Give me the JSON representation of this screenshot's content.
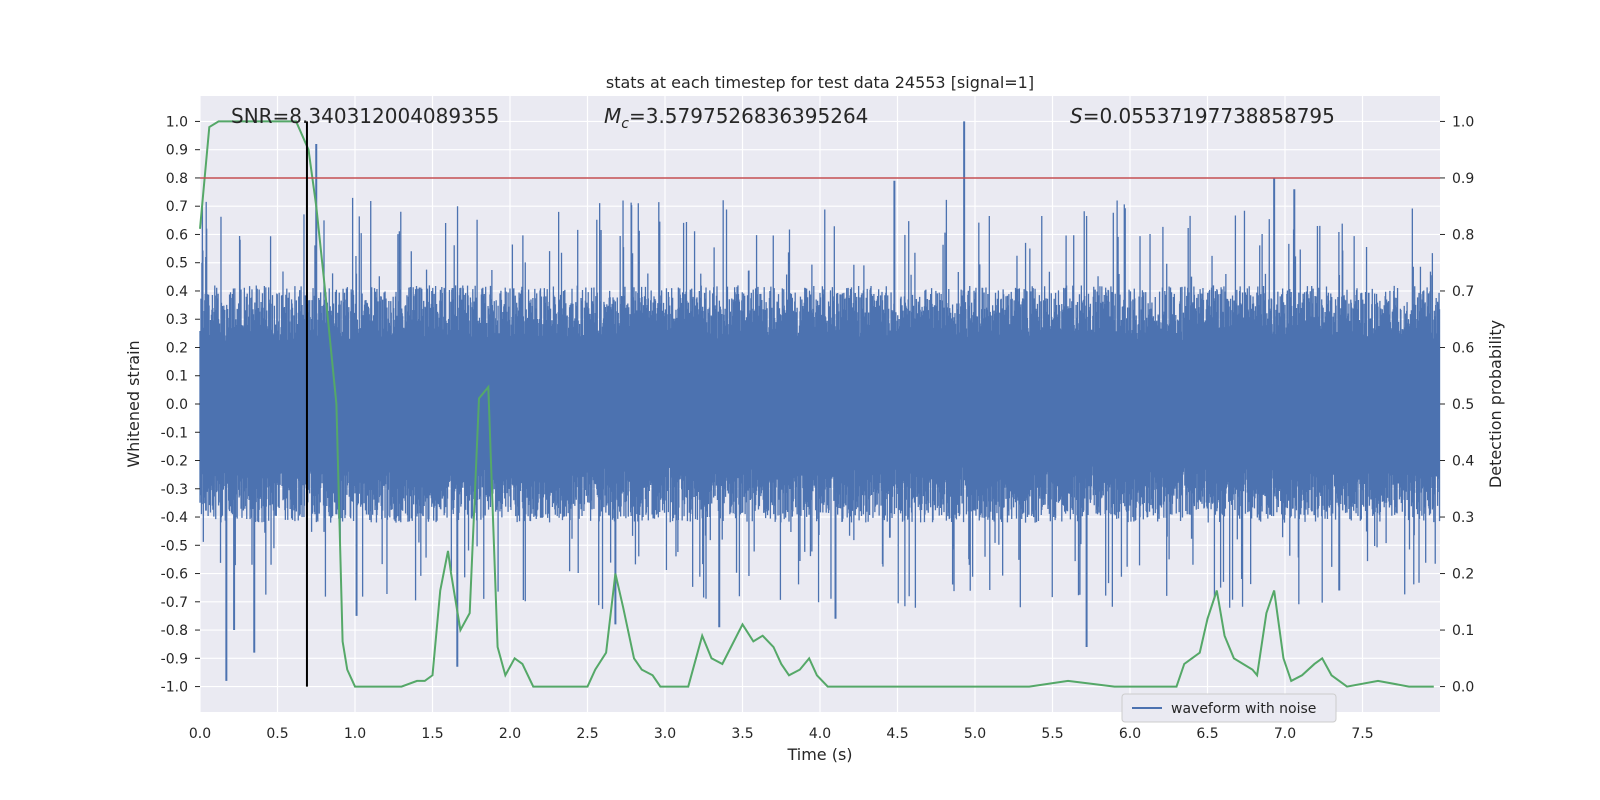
{
  "chart_data": {
    "type": "line",
    "title": "stats at each timestep for test data 24553 [signal=1]",
    "xlabel": "Time (s)",
    "ylabel": "Whitened strain",
    "y2label": "Detection probability",
    "xlim": [
      0.0,
      8.0
    ],
    "ylim": [
      -1.09,
      1.09
    ],
    "y2lim": [
      -0.045,
      1.045
    ],
    "x_ticks": [
      "0.0",
      "0.5",
      "1.0",
      "1.5",
      "2.0",
      "2.5",
      "3.0",
      "3.5",
      "4.0",
      "4.5",
      "5.0",
      "5.5",
      "6.0",
      "6.5",
      "7.0",
      "7.5"
    ],
    "y_ticks": [
      "1.0",
      "0.9",
      "0.8",
      "0.7",
      "0.6",
      "0.5",
      "0.4",
      "0.3",
      "0.2",
      "0.1",
      "0.0",
      "-0.1",
      "-0.2",
      "-0.3",
      "-0.4",
      "-0.5",
      "-0.6",
      "-0.7",
      "-0.8",
      "-0.9",
      "-1.0"
    ],
    "y2_ticks": [
      "1.0",
      "0.9",
      "0.8",
      "0.7",
      "0.6",
      "0.5",
      "0.4",
      "0.3",
      "0.2",
      "0.1",
      "0.0"
    ],
    "grid": true,
    "legend_position": "bottom-right",
    "annotations": {
      "snr": "SNR=8.340312004089355",
      "mc_symbol": "M",
      "mc_sub": "c",
      "mc_value": "=3.5797526836395264",
      "s_symbol": "S",
      "s_value": "=0.05537197738858795"
    },
    "colors": {
      "waveform": "#4c72b0",
      "probability": "#55a868",
      "threshold": "#c44e52",
      "marker": "#000000",
      "plot_bg": "#eaeaf2",
      "grid": "#ffffff"
    },
    "threshold_probability": 0.9,
    "merger_time": 0.69,
    "series": [
      {
        "name": "waveform with noise",
        "axis": "left",
        "style": "dense-noise",
        "envelope_typical": [
          -0.4,
          0.4
        ],
        "spikes": [
          {
            "x": 0.75,
            "y": 0.92
          },
          {
            "x": 4.93,
            "y": 1.0
          },
          {
            "x": 4.48,
            "y": 0.79
          },
          {
            "x": 6.93,
            "y": 0.8
          },
          {
            "x": 7.06,
            "y": 0.76
          },
          {
            "x": 0.17,
            "y": -0.98
          },
          {
            "x": 0.35,
            "y": -0.88
          },
          {
            "x": 0.22,
            "y": -0.8
          },
          {
            "x": 5.72,
            "y": -0.86
          },
          {
            "x": 3.35,
            "y": -0.79
          },
          {
            "x": 1.66,
            "y": -0.93
          },
          {
            "x": 4.1,
            "y": -0.76
          },
          {
            "x": 2.68,
            "y": -0.78
          },
          {
            "x": 7.35,
            "y": -0.66
          },
          {
            "x": 1.01,
            "y": -0.75
          }
        ]
      },
      {
        "name": "",
        "axis": "right",
        "x": [
          0.0,
          0.06,
          0.12,
          0.2,
          0.3,
          0.4,
          0.5,
          0.62,
          0.7,
          0.75,
          0.8,
          0.88,
          0.92,
          0.95,
          1.0,
          1.05,
          1.1,
          1.2,
          1.3,
          1.4,
          1.45,
          1.5,
          1.55,
          1.6,
          1.62,
          1.68,
          1.74,
          1.8,
          1.86,
          1.92,
          1.97,
          2.03,
          2.08,
          2.15,
          2.25,
          2.35,
          2.5,
          2.55,
          2.62,
          2.68,
          2.73,
          2.8,
          2.85,
          2.92,
          2.97,
          3.03,
          3.1,
          3.15,
          3.24,
          3.3,
          3.37,
          3.5,
          3.57,
          3.63,
          3.7,
          3.75,
          3.8,
          3.87,
          3.93,
          3.98,
          4.05,
          4.1,
          4.2,
          4.35,
          4.6,
          4.9,
          5.1,
          5.35,
          5.6,
          5.9,
          6.2,
          6.3,
          6.35,
          6.4,
          6.45,
          6.5,
          6.56,
          6.61,
          6.67,
          6.73,
          6.79,
          6.82,
          6.88,
          6.93,
          6.99,
          7.04,
          7.11,
          7.19,
          7.24,
          7.3,
          7.4,
          7.6,
          7.8,
          7.96
        ],
        "values": [
          0.81,
          0.99,
          1.0,
          1.0,
          1.0,
          1.0,
          1.0,
          1.0,
          0.95,
          0.85,
          0.72,
          0.5,
          0.08,
          0.03,
          0.0,
          0.0,
          0.0,
          0.0,
          0.0,
          0.01,
          0.01,
          0.02,
          0.17,
          0.24,
          0.2,
          0.1,
          0.13,
          0.51,
          0.53,
          0.07,
          0.02,
          0.05,
          0.04,
          0.0,
          0.0,
          0.0,
          0.0,
          0.03,
          0.06,
          0.2,
          0.14,
          0.05,
          0.03,
          0.02,
          0.0,
          0.0,
          0.0,
          0.0,
          0.09,
          0.05,
          0.04,
          0.11,
          0.08,
          0.09,
          0.07,
          0.04,
          0.02,
          0.03,
          0.05,
          0.02,
          0.0,
          0.0,
          0.0,
          0.0,
          0.0,
          0.0,
          0.0,
          0.0,
          0.01,
          0.0,
          0.0,
          0.0,
          0.04,
          0.05,
          0.06,
          0.12,
          0.17,
          0.09,
          0.05,
          0.04,
          0.03,
          0.02,
          0.13,
          0.17,
          0.05,
          0.01,
          0.02,
          0.04,
          0.05,
          0.02,
          0.0,
          0.01,
          0.0,
          0.0
        ]
      }
    ]
  }
}
